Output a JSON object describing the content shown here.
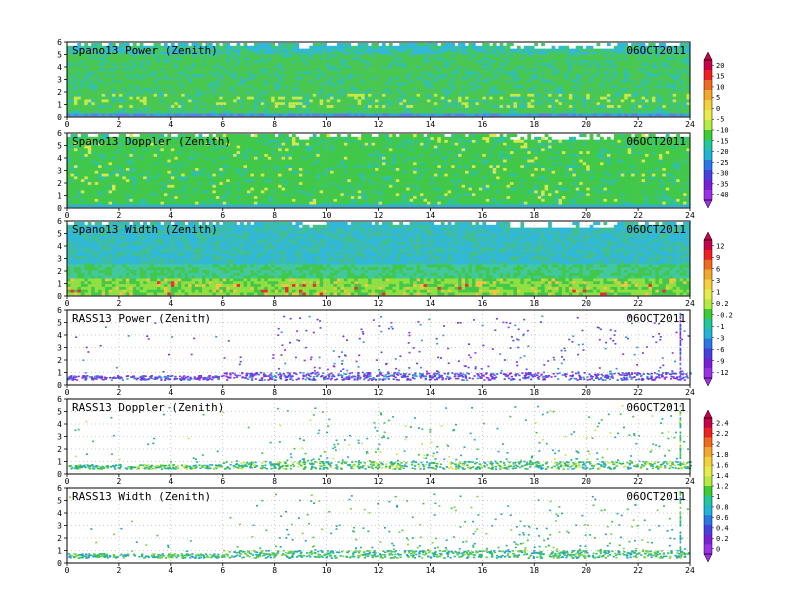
{
  "chart_data": [
    {
      "type": "heatmap",
      "title": "Spano13 Power (Zenith)",
      "date": "06OCT2011",
      "xlim": [
        0,
        24
      ],
      "ylim": [
        0,
        6
      ],
      "xticks": [
        0,
        2,
        4,
        6,
        8,
        10,
        12,
        14,
        16,
        18,
        20,
        22,
        24
      ],
      "yticks": [
        0,
        1,
        2,
        3,
        4,
        5,
        6
      ],
      "grid": true,
      "colorbar": {
        "group": 1,
        "labels": [
          "20",
          "15",
          "10",
          "5",
          "0",
          "-5",
          "-10",
          "-15",
          "-20",
          "-25",
          "-30",
          "-35",
          "-40"
        ]
      }
    },
    {
      "type": "heatmap",
      "title": "Spano13 Doppler (Zenith)",
      "date": "06OCT2011",
      "xlim": [
        0,
        24
      ],
      "ylim": [
        0,
        6
      ],
      "xticks": [
        0,
        2,
        4,
        6,
        8,
        10,
        12,
        14,
        16,
        18,
        20,
        22,
        24
      ],
      "yticks": [
        0,
        1,
        2,
        3,
        4,
        5,
        6
      ],
      "grid": true
    },
    {
      "type": "heatmap",
      "title": "Spano13 Width (Zenith)",
      "date": "06OCT2011",
      "xlim": [
        0,
        24
      ],
      "ylim": [
        0,
        6
      ],
      "xticks": [
        0,
        2,
        4,
        6,
        8,
        10,
        12,
        14,
        16,
        18,
        20,
        22,
        24
      ],
      "yticks": [
        0,
        1,
        2,
        3,
        4,
        5,
        6
      ],
      "grid": true,
      "colorbar": {
        "group": 2,
        "labels": [
          "12",
          "9",
          "6",
          "3",
          "1",
          "0.2",
          "-0.2",
          "-1",
          "-3",
          "-6",
          "-9",
          "-12"
        ]
      }
    },
    {
      "type": "scatter",
      "title": "RASS13 Power (Zenith)",
      "date": "06OCT2011",
      "xlim": [
        0,
        24
      ],
      "ylim": [
        0,
        6
      ],
      "xticks": [
        0,
        2,
        4,
        6,
        8,
        10,
        12,
        14,
        16,
        18,
        20,
        22,
        24
      ],
      "yticks": [
        0,
        1,
        2,
        3,
        4,
        5,
        6
      ],
      "grid": true
    },
    {
      "type": "scatter",
      "title": "RASS13 Doppler (Zenith)",
      "date": "06OCT2011",
      "xlim": [
        0,
        24
      ],
      "ylim": [
        0,
        6
      ],
      "xticks": [
        0,
        2,
        4,
        6,
        8,
        10,
        12,
        14,
        16,
        18,
        20,
        22,
        24
      ],
      "yticks": [
        0,
        1,
        2,
        3,
        4,
        5,
        6
      ],
      "grid": true,
      "colorbar": {
        "group": 3,
        "labels": [
          "2.4",
          "2.2",
          "2",
          "1.8",
          "1.6",
          "1.4",
          "1.2",
          "1",
          "0.8",
          "0.6",
          "0.4",
          "0.2",
          "0"
        ]
      }
    },
    {
      "type": "scatter",
      "title": "RASS13 Width (Zenith)",
      "date": "06OCT2011",
      "xlim": [
        0,
        24
      ],
      "ylim": [
        0,
        6
      ],
      "xticks": [
        0,
        2,
        4,
        6,
        8,
        10,
        12,
        14,
        16,
        18,
        20,
        22,
        24
      ],
      "yticks": [
        0,
        1,
        2,
        3,
        4,
        5,
        6
      ],
      "grid": true
    }
  ],
  "colorbar_palette": [
    "#c8004a",
    "#ee2020",
    "#f06a1e",
    "#f2a82a",
    "#f2d23a",
    "#e8ec48",
    "#b6ec40",
    "#3ccc34",
    "#20c8a0",
    "#20b4d8",
    "#2878e8",
    "#4640e0",
    "#7820d8",
    "#9a30e8"
  ]
}
